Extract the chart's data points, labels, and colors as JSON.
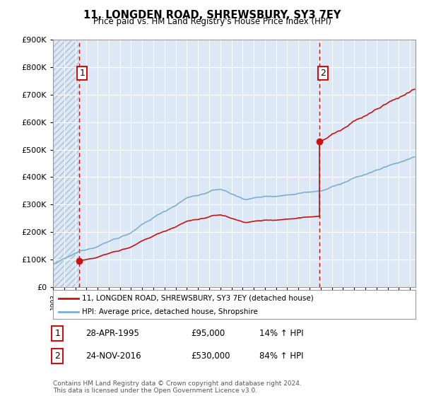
{
  "title": "11, LONGDEN ROAD, SHREWSBURY, SY3 7EY",
  "subtitle": "Price paid vs. HM Land Registry's House Price Index (HPI)",
  "hpi_label": "HPI: Average price, detached house, Shropshire",
  "property_label": "11, LONGDEN ROAD, SHREWSBURY, SY3 7EY (detached house)",
  "sale1": {
    "date": "28-APR-1995",
    "price": 95000,
    "hpi_pct": "14% ↑ HPI",
    "year": 1995.32
  },
  "sale2": {
    "date": "24-NOV-2016",
    "price": 530000,
    "hpi_pct": "84% ↑ HPI",
    "year": 2016.9
  },
  "ylim": [
    0,
    900000
  ],
  "xlim_start": 1993.0,
  "xlim_end": 2025.5,
  "background_color": "#dce8f5",
  "hatch_color": "#b0bfd0",
  "grid_color": "#ffffff",
  "hpi_line_color": "#7aafd4",
  "property_line_color": "#cc1111",
  "vline_color": "#cc1111",
  "dot_color": "#cc1111",
  "footnote": "Contains HM Land Registry data © Crown copyright and database right 2024.\nThis data is licensed under the Open Government Licence v3.0."
}
